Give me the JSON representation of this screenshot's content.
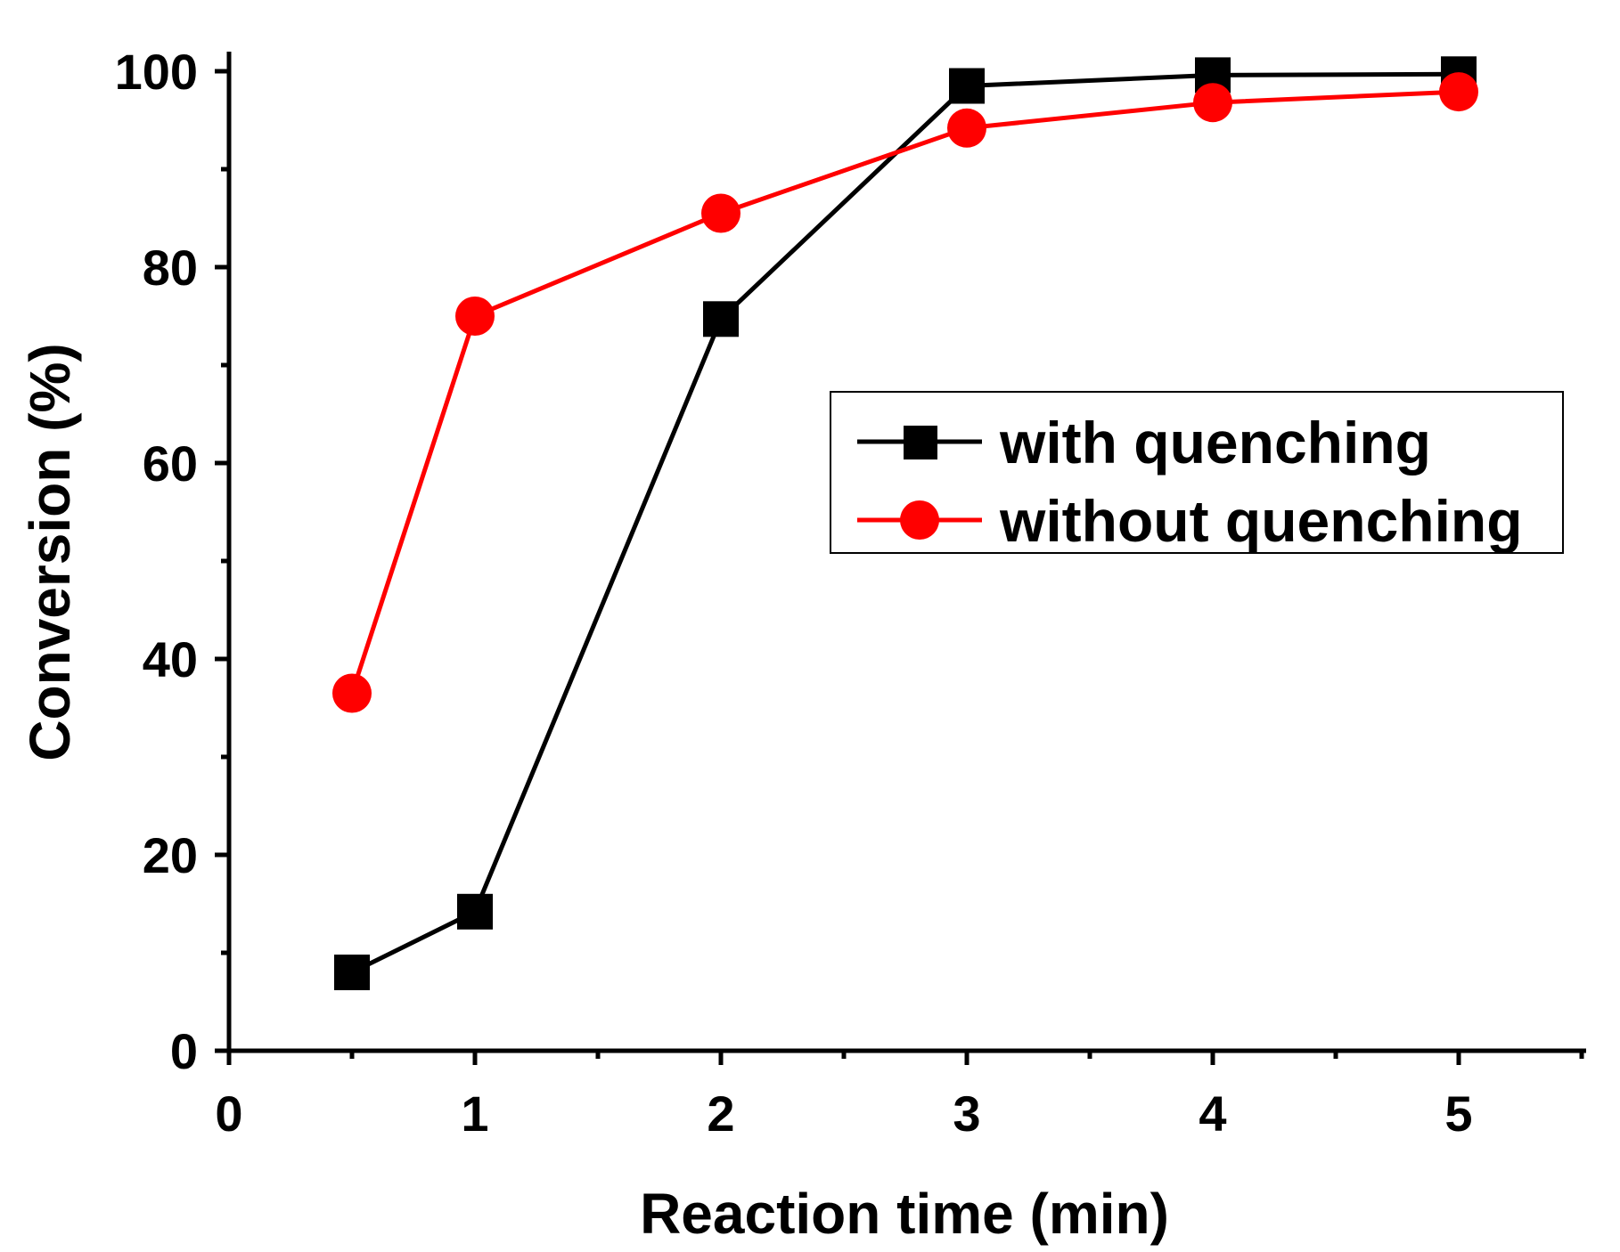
{
  "chart_data": {
    "type": "line",
    "title": "",
    "xlabel": "Reaction time (min)",
    "ylabel": "Conversion (%)",
    "xlim": [
      0,
      5.5
    ],
    "ylim": [
      0,
      100
    ],
    "x_major_ticks": [
      0,
      1,
      2,
      3,
      4,
      5
    ],
    "x_tick_labels": [
      "0",
      "1",
      "2",
      "3",
      "4",
      "5"
    ],
    "x_minor_ticks": [
      0.5,
      1.5,
      2.5,
      3.5,
      4.5,
      5.5
    ],
    "y_major_ticks": [
      0,
      20,
      40,
      60,
      80,
      100
    ],
    "y_tick_labels": [
      "0",
      "20",
      "40",
      "60",
      "80",
      "100"
    ],
    "y_minor_ticks": [
      10,
      30,
      50,
      70,
      90
    ],
    "grid": false,
    "legend_position": "center-right",
    "series": [
      {
        "name": "with quenching",
        "color": "#000000",
        "marker": "square",
        "x": [
          0.5,
          1,
          2,
          3,
          4,
          5
        ],
        "y": [
          8,
          14.2,
          74.7,
          98.5,
          99.6,
          99.7
        ]
      },
      {
        "name": "without quenching",
        "color": "#ff0000",
        "marker": "circle",
        "x": [
          0.5,
          1,
          2,
          3,
          4,
          5
        ],
        "y": [
          36.5,
          75,
          85.5,
          94.2,
          96.8,
          97.9
        ]
      }
    ]
  }
}
